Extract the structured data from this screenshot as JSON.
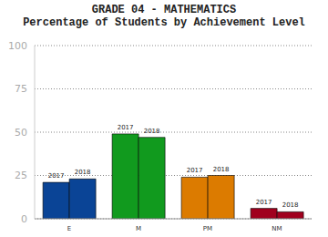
{
  "chart_data": {
    "type": "bar",
    "title": "GRADE 04 - MATHEMATICS",
    "subtitle": "Percentage of Students by Achievement Level",
    "categories": [
      "E",
      "M",
      "PM",
      "NM"
    ],
    "series": [
      {
        "name": "2017",
        "values": [
          21,
          49,
          24,
          6
        ]
      },
      {
        "name": "2018",
        "values": [
          23,
          47,
          25,
          4
        ]
      }
    ],
    "colors": [
      "#0a4496",
      "#119a1e",
      "#dc7b00",
      "#a0001e"
    ],
    "ylim": [
      0,
      100
    ],
    "yticks": [
      0,
      25,
      50,
      75,
      100
    ],
    "grid": true
  }
}
